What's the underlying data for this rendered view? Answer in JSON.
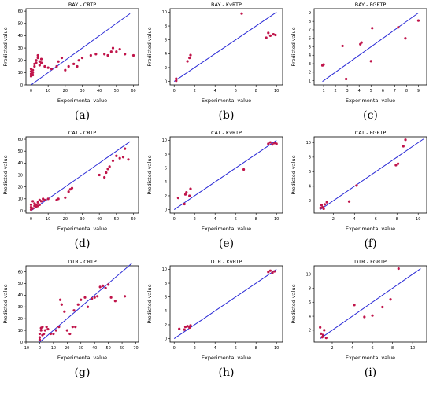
{
  "colors": {
    "points": "#c0144a",
    "line": "#2a2ad6",
    "axes": "#000000"
  },
  "chart_data": [
    {
      "type": "scatter",
      "title": "BAY - CRTP",
      "label": "(a)",
      "xlabel": "Experimental value",
      "ylabel": "Predicted value",
      "xlim": [
        -3,
        63
      ],
      "ylim": [
        0,
        62
      ],
      "xticks": [
        0,
        10,
        20,
        30,
        40,
        50,
        60
      ],
      "yticks": [
        0,
        10,
        20,
        30,
        40,
        50,
        60
      ],
      "diagonal": [
        [
          0,
          0
        ],
        [
          58,
          58
        ]
      ],
      "points": [
        [
          0,
          7
        ],
        [
          0,
          9
        ],
        [
          0,
          11
        ],
        [
          1,
          8
        ],
        [
          1,
          10
        ],
        [
          0,
          13
        ],
        [
          1,
          12
        ],
        [
          2,
          15
        ],
        [
          2,
          17
        ],
        [
          3,
          18
        ],
        [
          3,
          20
        ],
        [
          4,
          22
        ],
        [
          4,
          24
        ],
        [
          5,
          16
        ],
        [
          5,
          19
        ],
        [
          6,
          21
        ],
        [
          6,
          18
        ],
        [
          8,
          15
        ],
        [
          10,
          14
        ],
        [
          12,
          13
        ],
        [
          15,
          15
        ],
        [
          16,
          19
        ],
        [
          18,
          22
        ],
        [
          20,
          12
        ],
        [
          22,
          15
        ],
        [
          25,
          17
        ],
        [
          27,
          15
        ],
        [
          28,
          20
        ],
        [
          30,
          22
        ],
        [
          35,
          24
        ],
        [
          38,
          25
        ],
        [
          43,
          25
        ],
        [
          45,
          24
        ],
        [
          47,
          27
        ],
        [
          48,
          30
        ],
        [
          50,
          27
        ],
        [
          52,
          29
        ],
        [
          55,
          25
        ],
        [
          60,
          24
        ]
      ]
    },
    {
      "type": "scatter",
      "title": "BAY - KvRTP",
      "label": "(b)",
      "xlabel": "Experimental value",
      "ylabel": "Predicted value",
      "xlim": [
        -0.4,
        10.6
      ],
      "ylim": [
        -0.5,
        10.5
      ],
      "xticks": [
        0,
        2,
        4,
        6,
        8,
        10
      ],
      "yticks": [
        0,
        2,
        4,
        6,
        8,
        10
      ],
      "diagonal": [
        [
          0,
          0
        ],
        [
          10,
          10
        ]
      ],
      "points": [
        [
          0.2,
          0.1
        ],
        [
          0.2,
          0.4
        ],
        [
          1.3,
          2.9
        ],
        [
          1.5,
          3.4
        ],
        [
          1.6,
          3.8
        ],
        [
          6.6,
          9.8
        ],
        [
          9.0,
          6.3
        ],
        [
          9.2,
          7.0
        ],
        [
          9.4,
          6.6
        ],
        [
          9.7,
          6.8
        ],
        [
          9.9,
          6.7
        ]
      ]
    },
    {
      "type": "scatter",
      "title": "BAY - FGRTP",
      "label": "(c)",
      "xlabel": "Experimental value",
      "ylabel": "Predicted value",
      "xlim": [
        0.2,
        9.7
      ],
      "ylim": [
        0.5,
        9.5
      ],
      "xticks": [
        1,
        2,
        3,
        4,
        5,
        6,
        7,
        8,
        9
      ],
      "yticks": [
        1,
        2,
        3,
        4,
        5,
        6,
        7,
        8,
        9
      ],
      "diagonal": [
        [
          0.9,
          0.9
        ],
        [
          9,
          9
        ]
      ],
      "points": [
        [
          0.9,
          2.8
        ],
        [
          1.0,
          2.9
        ],
        [
          2.6,
          5.1
        ],
        [
          2.9,
          1.2
        ],
        [
          4.1,
          5.3
        ],
        [
          4.2,
          5.5
        ],
        [
          5.0,
          3.3
        ],
        [
          5.1,
          7.2
        ],
        [
          7.3,
          7.3
        ],
        [
          7.9,
          6.0
        ],
        [
          9.0,
          8.1
        ]
      ]
    },
    {
      "type": "scatter",
      "title": "CAT - CRTP",
      "label": "(d)",
      "xlabel": "Experimental value",
      "ylabel": "Predicted value",
      "xlim": [
        -3,
        63
      ],
      "ylim": [
        -2,
        62
      ],
      "xticks": [
        0,
        10,
        20,
        30,
        40,
        50,
        60
      ],
      "yticks": [
        0,
        10,
        20,
        30,
        40,
        50,
        60
      ],
      "diagonal": [
        [
          0,
          0
        ],
        [
          58,
          58
        ]
      ],
      "points": [
        [
          0,
          1
        ],
        [
          0,
          3
        ],
        [
          0,
          5
        ],
        [
          1,
          8
        ],
        [
          1,
          2
        ],
        [
          2,
          4
        ],
        [
          2,
          6
        ],
        [
          3,
          3
        ],
        [
          3,
          5
        ],
        [
          4,
          4
        ],
        [
          4,
          7
        ],
        [
          5,
          5
        ],
        [
          5,
          9
        ],
        [
          6,
          8
        ],
        [
          7,
          10
        ],
        [
          8,
          9
        ],
        [
          10,
          10
        ],
        [
          15,
          9
        ],
        [
          16,
          10
        ],
        [
          20,
          11
        ],
        [
          22,
          16
        ],
        [
          23,
          18
        ],
        [
          24,
          19
        ],
        [
          40,
          30
        ],
        [
          43,
          28
        ],
        [
          44,
          32
        ],
        [
          45,
          35
        ],
        [
          46,
          37
        ],
        [
          48,
          42
        ],
        [
          50,
          46
        ],
        [
          52,
          44
        ],
        [
          54,
          45
        ],
        [
          55,
          52
        ],
        [
          57,
          43
        ]
      ]
    },
    {
      "type": "scatter",
      "title": "CAT - KvRTP",
      "label": "(e)",
      "xlabel": "Experimental value",
      "ylabel": "Predicted value",
      "xlim": [
        -0.4,
        10.6
      ],
      "ylim": [
        -0.5,
        10.5
      ],
      "xticks": [
        0,
        2,
        4,
        6,
        8,
        10
      ],
      "yticks": [
        0,
        2,
        4,
        6,
        8,
        10
      ],
      "diagonal": [
        [
          0,
          0
        ],
        [
          10,
          10
        ]
      ],
      "points": [
        [
          0.4,
          1.7
        ],
        [
          1.0,
          0.8
        ],
        [
          1.1,
          2.2
        ],
        [
          1.2,
          2.5
        ],
        [
          1.5,
          2.0
        ],
        [
          1.6,
          3.0
        ],
        [
          6.8,
          5.8
        ],
        [
          9.2,
          9.5
        ],
        [
          9.4,
          9.7
        ],
        [
          9.6,
          9.4
        ],
        [
          9.8,
          9.6
        ],
        [
          10.0,
          9.5
        ]
      ]
    },
    {
      "type": "scatter",
      "title": "CAT - FGRTP",
      "label": "(f)",
      "xlabel": "Experimental value",
      "ylabel": "Predicted value",
      "xlim": [
        0.2,
        10.8
      ],
      "ylim": [
        0.3,
        10.8
      ],
      "xticks": [
        2,
        4,
        6,
        8,
        10
      ],
      "yticks": [
        2,
        4,
        6,
        8,
        10
      ],
      "diagonal": [
        [
          0.8,
          0.8
        ],
        [
          10.5,
          10.5
        ]
      ],
      "points": [
        [
          0.8,
          1.0
        ],
        [
          0.9,
          1.4
        ],
        [
          1.0,
          1.1
        ],
        [
          1.1,
          0.9
        ],
        [
          1.2,
          1.5
        ],
        [
          1.4,
          1.8
        ],
        [
          3.5,
          1.9
        ],
        [
          4.2,
          4.1
        ],
        [
          7.9,
          6.9
        ],
        [
          8.1,
          7.1
        ],
        [
          8.6,
          9.5
        ],
        [
          8.8,
          10.4
        ]
      ]
    },
    {
      "type": "scatter",
      "title": "DTR - CRTP",
      "label": "(g)",
      "xlabel": "Experimental value",
      "ylabel": "Predicted value",
      "xlim": [
        -10,
        72
      ],
      "ylim": [
        0,
        65
      ],
      "xticks": [
        -10,
        0,
        10,
        20,
        30,
        40,
        50,
        60,
        70
      ],
      "yticks": [
        0,
        10,
        20,
        30,
        40,
        50,
        60
      ],
      "diagonal": [
        [
          0,
          0
        ],
        [
          67,
          67
        ]
      ],
      "points": [
        [
          0,
          2
        ],
        [
          0,
          4
        ],
        [
          0,
          7
        ],
        [
          1,
          10
        ],
        [
          1,
          12
        ],
        [
          2,
          6
        ],
        [
          2,
          13
        ],
        [
          3,
          7
        ],
        [
          4,
          10
        ],
        [
          5,
          13
        ],
        [
          6,
          11
        ],
        [
          8,
          7
        ],
        [
          10,
          7
        ],
        [
          12,
          10
        ],
        [
          14,
          13
        ],
        [
          15,
          36
        ],
        [
          16,
          32
        ],
        [
          18,
          26
        ],
        [
          20,
          10
        ],
        [
          22,
          7
        ],
        [
          24,
          13
        ],
        [
          25,
          27
        ],
        [
          26,
          13
        ],
        [
          28,
          32
        ],
        [
          30,
          36
        ],
        [
          33,
          38
        ],
        [
          35,
          30
        ],
        [
          38,
          37
        ],
        [
          40,
          38
        ],
        [
          42,
          39
        ],
        [
          44,
          47
        ],
        [
          46,
          48
        ],
        [
          48,
          46
        ],
        [
          50,
          49
        ],
        [
          52,
          38
        ],
        [
          55,
          35
        ],
        [
          62,
          39
        ]
      ]
    },
    {
      "type": "scatter",
      "title": "DTR - KvRTP",
      "label": "(h)",
      "xlabel": "Experimental value",
      "ylabel": "Predicted value",
      "xlim": [
        -0.4,
        10.6
      ],
      "ylim": [
        -0.5,
        10.5
      ],
      "xticks": [
        0,
        2,
        4,
        6,
        8,
        10
      ],
      "yticks": [
        0,
        2,
        4,
        6,
        8,
        10
      ],
      "diagonal": [
        [
          0,
          0
        ],
        [
          10,
          10
        ]
      ],
      "points": [
        [
          0.5,
          1.4
        ],
        [
          1.0,
          1.3
        ],
        [
          1.1,
          1.7
        ],
        [
          1.3,
          1.8
        ],
        [
          1.5,
          1.6
        ],
        [
          1.6,
          1.9
        ],
        [
          9.2,
          9.6
        ],
        [
          9.4,
          9.8
        ],
        [
          9.6,
          9.5
        ],
        [
          9.8,
          9.7
        ]
      ]
    },
    {
      "type": "scatter",
      "title": "DTR - FGRTP",
      "label": "(i)",
      "xlabel": "Experimental value",
      "ylabel": "Predicted value",
      "xlim": [
        0.2,
        11.4
      ],
      "ylim": [
        0.3,
        11.2
      ],
      "xticks": [
        2,
        4,
        6,
        8,
        10
      ],
      "yticks": [
        2,
        4,
        6,
        8,
        10
      ],
      "diagonal": [
        [
          0.8,
          0.8
        ],
        [
          10.8,
          10.8
        ]
      ],
      "points": [
        [
          0.8,
          2.4
        ],
        [
          0.9,
          1.5
        ],
        [
          1.0,
          1.0
        ],
        [
          1.1,
          1.3
        ],
        [
          1.2,
          2.0
        ],
        [
          1.4,
          0.9
        ],
        [
          4.2,
          5.6
        ],
        [
          5.2,
          3.9
        ],
        [
          6.0,
          4.1
        ],
        [
          7.0,
          5.3
        ],
        [
          7.8,
          6.4
        ],
        [
          8.6,
          10.8
        ]
      ]
    }
  ]
}
